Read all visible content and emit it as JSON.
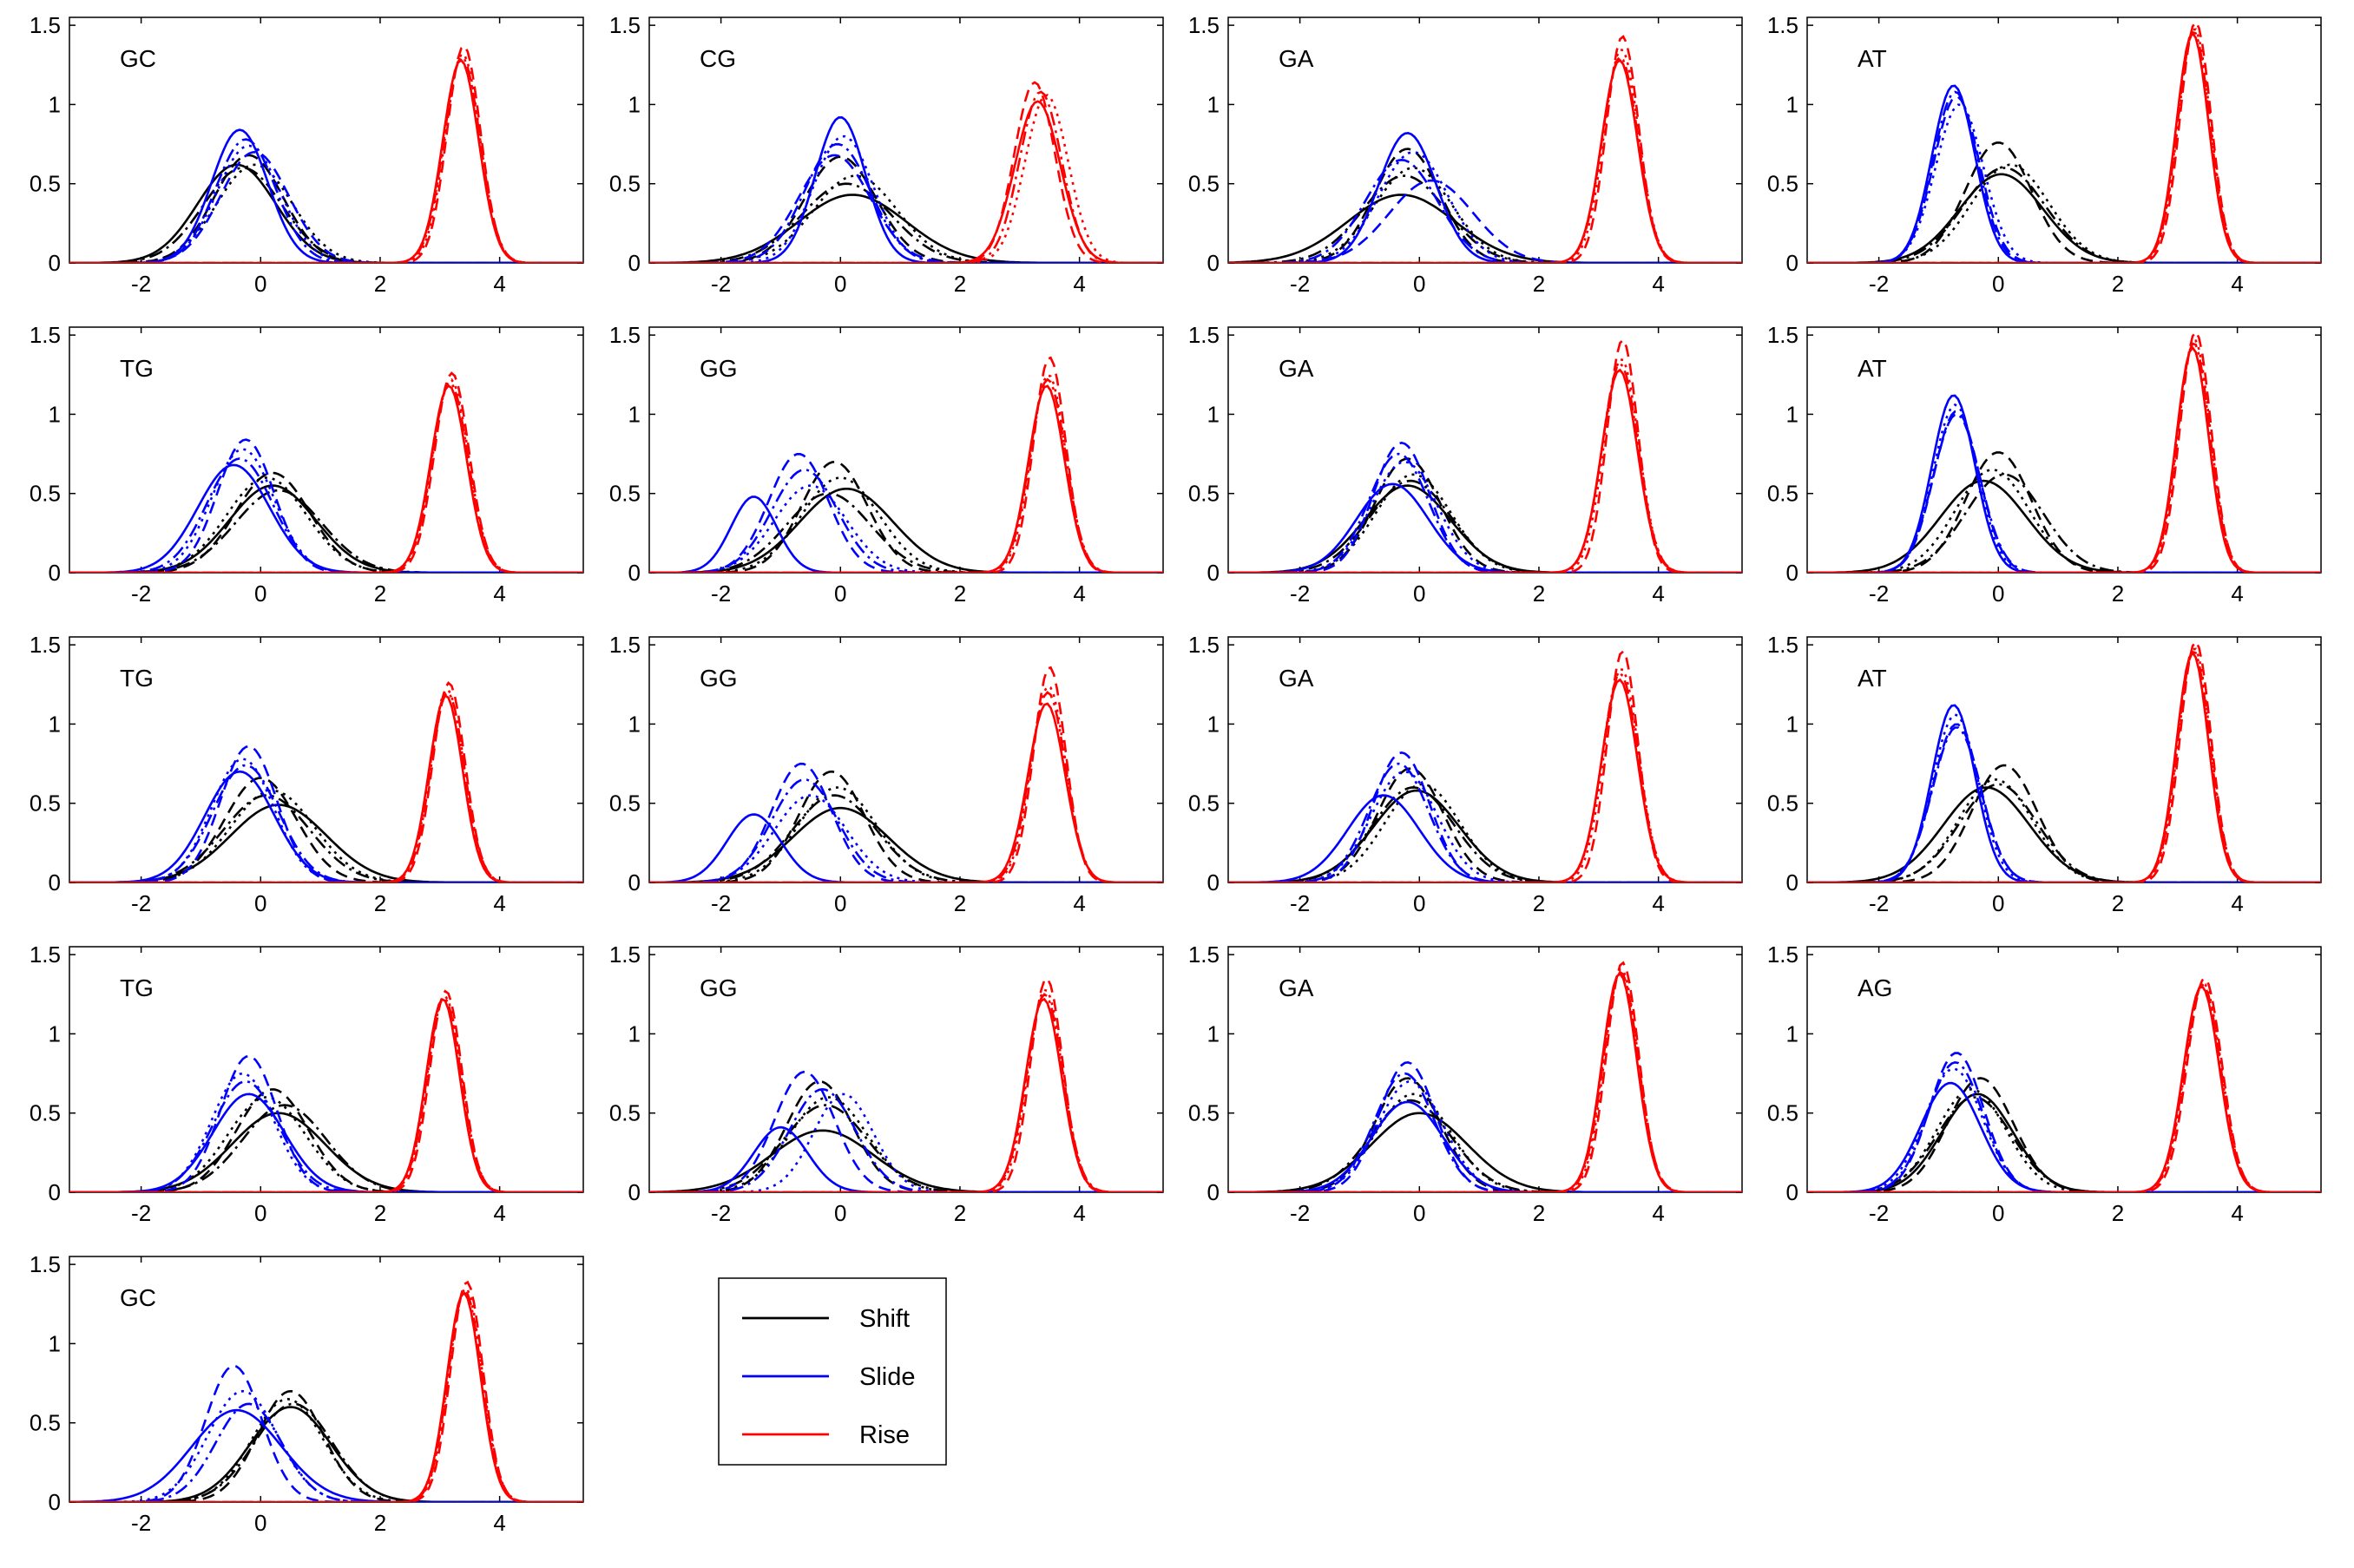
{
  "chart_data": {
    "type": "line",
    "xlim": [
      -3.2,
      5.4
    ],
    "ylim": [
      0,
      1.55
    ],
    "x_ticks": [
      "-2",
      "0",
      "2",
      "4"
    ],
    "y_ticks": [
      "0",
      "0.5",
      "1",
      "1.5"
    ],
    "grid": false,
    "colors": {
      "Shift": "#000000",
      "Slide": "#0000ff",
      "Rise": "#ff0000"
    },
    "legend": {
      "position": "bottom-center",
      "entries": [
        {
          "label": "Shift",
          "color": "#000000"
        },
        {
          "label": "Slide",
          "color": "#0000ff"
        },
        {
          "label": "Rise",
          "color": "#ff0000"
        }
      ]
    },
    "panels": [
      {
        "label": "GC",
        "shift": [
          [
            -0.4,
            0.62,
            0.65
          ],
          [
            -0.2,
            0.68,
            0.58
          ],
          [
            -0.1,
            0.62,
            0.63
          ],
          [
            -0.3,
            0.6,
            0.66
          ]
        ],
        "slide": [
          [
            -0.35,
            0.84,
            0.47
          ],
          [
            -0.1,
            0.7,
            0.57
          ],
          [
            -0.2,
            0.74,
            0.53
          ],
          [
            -0.25,
            0.78,
            0.5
          ]
        ],
        "rise": [
          [
            3.35,
            1.28,
            0.3
          ],
          [
            3.4,
            1.37,
            0.28
          ],
          [
            3.38,
            1.32,
            0.29
          ],
          [
            3.37,
            1.3,
            0.3
          ]
        ]
      },
      {
        "label": "CG",
        "shift": [
          [
            0.2,
            0.43,
            0.9
          ],
          [
            0.0,
            0.67,
            0.6
          ],
          [
            0.25,
            0.55,
            0.7
          ],
          [
            0.1,
            0.5,
            0.75
          ]
        ],
        "slide": [
          [
            0.0,
            0.92,
            0.42
          ],
          [
            -0.1,
            0.68,
            0.6
          ],
          [
            0.05,
            0.8,
            0.5
          ],
          [
            -0.05,
            0.75,
            0.55
          ]
        ],
        "rise": [
          [
            3.3,
            1.02,
            0.38
          ],
          [
            3.25,
            1.14,
            0.34
          ],
          [
            3.45,
            1.06,
            0.36
          ],
          [
            3.35,
            1.08,
            0.35
          ]
        ]
      },
      {
        "label": "GA",
        "shift": [
          [
            -0.3,
            0.43,
            0.9
          ],
          [
            -0.2,
            0.72,
            0.55
          ],
          [
            -0.1,
            0.6,
            0.65
          ],
          [
            -0.25,
            0.55,
            0.7
          ]
        ],
        "slide": [
          [
            -0.2,
            0.82,
            0.48
          ],
          [
            0.2,
            0.52,
            0.7
          ],
          [
            -0.1,
            0.7,
            0.58
          ],
          [
            -0.3,
            0.65,
            0.6
          ]
        ],
        "rise": [
          [
            3.35,
            1.28,
            0.3
          ],
          [
            3.4,
            1.43,
            0.27
          ],
          [
            3.38,
            1.35,
            0.29
          ],
          [
            3.36,
            1.3,
            0.3
          ]
        ]
      },
      {
        "label": "AT",
        "shift": [
          [
            0.05,
            0.56,
            0.7
          ],
          [
            0.0,
            0.76,
            0.55
          ],
          [
            0.2,
            0.62,
            0.65
          ],
          [
            0.1,
            0.6,
            0.68
          ]
        ],
        "slide": [
          [
            -0.75,
            1.12,
            0.36
          ],
          [
            -0.7,
            1.05,
            0.38
          ],
          [
            -0.65,
            1.0,
            0.4
          ],
          [
            -0.72,
            1.08,
            0.37
          ]
        ],
        "rise": [
          [
            3.25,
            1.45,
            0.27
          ],
          [
            3.3,
            1.52,
            0.26
          ],
          [
            3.28,
            1.48,
            0.27
          ],
          [
            3.27,
            1.46,
            0.27
          ]
        ]
      },
      {
        "label": "TG",
        "shift": [
          [
            0.2,
            0.55,
            0.72
          ],
          [
            0.2,
            0.63,
            0.62
          ],
          [
            0.1,
            0.6,
            0.67
          ],
          [
            0.3,
            0.52,
            0.72
          ]
        ],
        "slide": [
          [
            -0.45,
            0.68,
            0.6
          ],
          [
            -0.25,
            0.84,
            0.47
          ],
          [
            -0.3,
            0.78,
            0.52
          ],
          [
            -0.35,
            0.72,
            0.55
          ]
        ],
        "rise": [
          [
            3.15,
            1.18,
            0.3
          ],
          [
            3.2,
            1.26,
            0.29
          ],
          [
            3.18,
            1.22,
            0.3
          ],
          [
            3.17,
            1.2,
            0.3
          ]
        ]
      },
      {
        "label": "GG",
        "shift": [
          [
            0.1,
            0.53,
            0.78
          ],
          [
            -0.1,
            0.7,
            0.55
          ],
          [
            0.0,
            0.6,
            0.65
          ],
          [
            -0.2,
            0.5,
            0.7
          ]
        ],
        "slide": [
          [
            -1.45,
            0.48,
            0.38
          ],
          [
            -0.7,
            0.75,
            0.5
          ],
          [
            -0.5,
            0.55,
            0.6
          ],
          [
            -0.6,
            0.65,
            0.55
          ]
        ],
        "rise": [
          [
            3.45,
            1.18,
            0.3
          ],
          [
            3.5,
            1.36,
            0.27
          ],
          [
            3.48,
            1.25,
            0.29
          ],
          [
            3.47,
            1.22,
            0.3
          ]
        ]
      },
      {
        "label": "GA",
        "shift": [
          [
            -0.2,
            0.55,
            0.72
          ],
          [
            -0.2,
            0.72,
            0.55
          ],
          [
            -0.1,
            0.62,
            0.63
          ],
          [
            -0.15,
            0.58,
            0.68
          ]
        ],
        "slide": [
          [
            -0.45,
            0.56,
            0.6
          ],
          [
            -0.3,
            0.82,
            0.47
          ],
          [
            -0.25,
            0.7,
            0.55
          ],
          [
            -0.35,
            0.75,
            0.5
          ]
        ],
        "rise": [
          [
            3.35,
            1.28,
            0.3
          ],
          [
            3.4,
            1.47,
            0.26
          ],
          [
            3.38,
            1.35,
            0.29
          ],
          [
            3.36,
            1.32,
            0.3
          ]
        ]
      },
      {
        "label": "AT",
        "shift": [
          [
            -0.25,
            0.58,
            0.72
          ],
          [
            0.0,
            0.76,
            0.55
          ],
          [
            -0.1,
            0.65,
            0.62
          ],
          [
            0.1,
            0.62,
            0.65
          ]
        ],
        "slide": [
          [
            -0.75,
            1.12,
            0.36
          ],
          [
            -0.7,
            1.02,
            0.38
          ],
          [
            -0.72,
            1.06,
            0.37
          ],
          [
            -0.7,
            1.0,
            0.39
          ]
        ],
        "rise": [
          [
            3.25,
            1.42,
            0.27
          ],
          [
            3.3,
            1.52,
            0.26
          ],
          [
            3.28,
            1.47,
            0.27
          ],
          [
            3.27,
            1.45,
            0.27
          ]
        ]
      },
      {
        "label": "TG",
        "shift": [
          [
            0.3,
            0.49,
            0.8
          ],
          [
            0.0,
            0.66,
            0.6
          ],
          [
            0.2,
            0.58,
            0.7
          ],
          [
            0.1,
            0.55,
            0.72
          ]
        ],
        "slide": [
          [
            -0.35,
            0.7,
            0.58
          ],
          [
            -0.2,
            0.86,
            0.47
          ],
          [
            -0.3,
            0.78,
            0.52
          ],
          [
            -0.25,
            0.74,
            0.55
          ]
        ],
        "rise": [
          [
            3.1,
            1.18,
            0.28
          ],
          [
            3.15,
            1.26,
            0.27
          ],
          [
            3.12,
            1.22,
            0.28
          ],
          [
            3.13,
            1.2,
            0.28
          ]
        ]
      },
      {
        "label": "GG",
        "shift": [
          [
            0.0,
            0.47,
            0.8
          ],
          [
            -0.15,
            0.7,
            0.55
          ],
          [
            -0.05,
            0.6,
            0.65
          ],
          [
            -0.1,
            0.55,
            0.7
          ]
        ],
        "slide": [
          [
            -1.45,
            0.43,
            0.45
          ],
          [
            -0.65,
            0.75,
            0.5
          ],
          [
            -0.5,
            0.55,
            0.6
          ],
          [
            -0.6,
            0.65,
            0.55
          ]
        ],
        "rise": [
          [
            3.45,
            1.13,
            0.31
          ],
          [
            3.5,
            1.36,
            0.27
          ],
          [
            3.48,
            1.24,
            0.29
          ],
          [
            3.47,
            1.2,
            0.3
          ]
        ]
      },
      {
        "label": "GA",
        "shift": [
          [
            -0.05,
            0.58,
            0.72
          ],
          [
            -0.15,
            0.72,
            0.55
          ],
          [
            0.05,
            0.62,
            0.63
          ],
          [
            -0.1,
            0.6,
            0.68
          ]
        ],
        "slide": [
          [
            -0.6,
            0.55,
            0.6
          ],
          [
            -0.3,
            0.82,
            0.47
          ],
          [
            -0.25,
            0.7,
            0.55
          ],
          [
            -0.35,
            0.75,
            0.5
          ]
        ],
        "rise": [
          [
            3.35,
            1.28,
            0.3
          ],
          [
            3.4,
            1.46,
            0.26
          ],
          [
            3.38,
            1.35,
            0.29
          ],
          [
            3.36,
            1.32,
            0.3
          ]
        ]
      },
      {
        "label": "AT",
        "shift": [
          [
            -0.2,
            0.6,
            0.72
          ],
          [
            0.1,
            0.74,
            0.55
          ],
          [
            -0.05,
            0.65,
            0.62
          ],
          [
            0.0,
            0.62,
            0.65
          ]
        ],
        "slide": [
          [
            -0.75,
            1.12,
            0.36
          ],
          [
            -0.7,
            1.0,
            0.4
          ],
          [
            -0.72,
            1.06,
            0.38
          ],
          [
            -0.7,
            0.98,
            0.4
          ]
        ],
        "rise": [
          [
            3.25,
            1.45,
            0.27
          ],
          [
            3.3,
            1.52,
            0.26
          ],
          [
            3.28,
            1.48,
            0.27
          ],
          [
            3.27,
            1.46,
            0.27
          ]
        ]
      },
      {
        "label": "TG",
        "shift": [
          [
            0.3,
            0.5,
            0.78
          ],
          [
            0.2,
            0.65,
            0.6
          ],
          [
            0.1,
            0.6,
            0.65
          ],
          [
            0.4,
            0.55,
            0.7
          ]
        ],
        "slide": [
          [
            -0.2,
            0.62,
            0.6
          ],
          [
            -0.2,
            0.86,
            0.47
          ],
          [
            -0.3,
            0.75,
            0.52
          ],
          [
            -0.25,
            0.7,
            0.55
          ]
        ],
        "rise": [
          [
            3.05,
            1.22,
            0.28
          ],
          [
            3.1,
            1.27,
            0.27
          ],
          [
            3.08,
            1.24,
            0.28
          ],
          [
            3.07,
            1.23,
            0.28
          ]
        ]
      },
      {
        "label": "GG",
        "shift": [
          [
            -0.3,
            0.39,
            0.85
          ],
          [
            -0.35,
            0.7,
            0.55
          ],
          [
            -0.2,
            0.6,
            0.65
          ],
          [
            -0.25,
            0.55,
            0.7
          ]
        ],
        "slide": [
          [
            -1.0,
            0.41,
            0.45
          ],
          [
            -0.6,
            0.76,
            0.5
          ],
          [
            0.05,
            0.62,
            0.5
          ],
          [
            -0.3,
            0.65,
            0.55
          ]
        ],
        "rise": [
          [
            3.4,
            1.22,
            0.3
          ],
          [
            3.45,
            1.35,
            0.27
          ],
          [
            3.43,
            1.28,
            0.29
          ],
          [
            3.42,
            1.25,
            0.3
          ]
        ]
      },
      {
        "label": "GA",
        "shift": [
          [
            0.0,
            0.5,
            0.8
          ],
          [
            -0.2,
            0.72,
            0.55
          ],
          [
            -0.1,
            0.62,
            0.63
          ],
          [
            -0.15,
            0.58,
            0.68
          ]
        ],
        "slide": [
          [
            -0.2,
            0.57,
            0.6
          ],
          [
            -0.2,
            0.82,
            0.47
          ],
          [
            -0.15,
            0.7,
            0.55
          ],
          [
            -0.25,
            0.75,
            0.5
          ]
        ],
        "rise": [
          [
            3.35,
            1.38,
            0.29
          ],
          [
            3.4,
            1.45,
            0.27
          ],
          [
            3.38,
            1.41,
            0.28
          ],
          [
            3.37,
            1.39,
            0.29
          ]
        ]
      },
      {
        "label": "AG",
        "shift": [
          [
            -0.35,
            0.62,
            0.6
          ],
          [
            -0.3,
            0.72,
            0.55
          ],
          [
            -0.45,
            0.65,
            0.58
          ],
          [
            -0.4,
            0.6,
            0.62
          ]
        ],
        "slide": [
          [
            -0.8,
            0.69,
            0.5
          ],
          [
            -0.7,
            0.88,
            0.45
          ],
          [
            -0.75,
            0.78,
            0.48
          ],
          [
            -0.72,
            0.82,
            0.46
          ]
        ],
        "rise": [
          [
            3.4,
            1.3,
            0.3
          ],
          [
            3.45,
            1.35,
            0.29
          ],
          [
            3.43,
            1.32,
            0.3
          ],
          [
            3.42,
            1.31,
            0.3
          ]
        ]
      },
      {
        "label": "GC",
        "shift": [
          [
            0.5,
            0.6,
            0.68
          ],
          [
            0.5,
            0.7,
            0.55
          ],
          [
            0.45,
            0.65,
            0.6
          ],
          [
            0.55,
            0.62,
            0.65
          ]
        ],
        "slide": [
          [
            -0.4,
            0.58,
            0.75
          ],
          [
            -0.45,
            0.86,
            0.47
          ],
          [
            -0.3,
            0.7,
            0.58
          ],
          [
            -0.2,
            0.62,
            0.55
          ]
        ],
        "rise": [
          [
            3.4,
            1.32,
            0.28
          ],
          [
            3.45,
            1.39,
            0.27
          ],
          [
            3.43,
            1.35,
            0.28
          ],
          [
            3.42,
            1.33,
            0.28
          ]
        ]
      }
    ]
  }
}
